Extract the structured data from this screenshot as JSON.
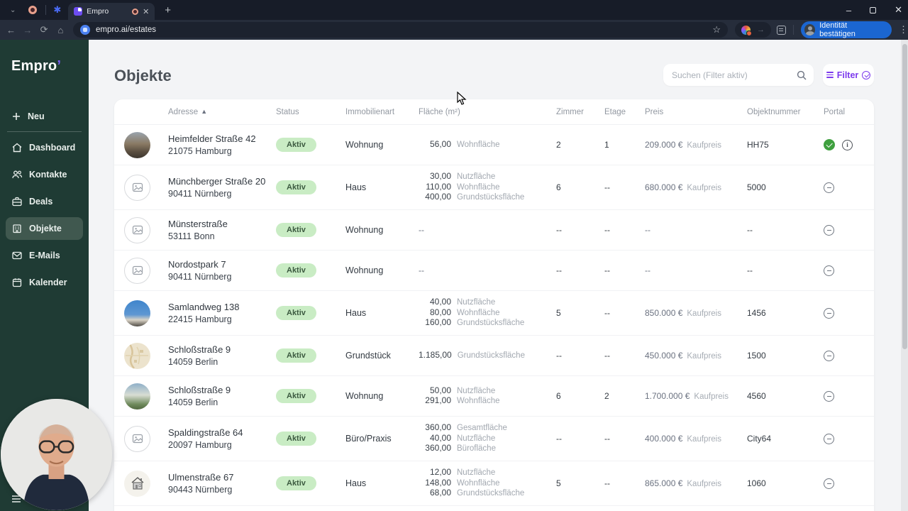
{
  "browser": {
    "tab_title": "Empro",
    "url": "empro.ai/estates",
    "identity_button": "Identität bestätigen",
    "window_buttons": {
      "minimize": "–",
      "close": "✕"
    }
  },
  "sidebar": {
    "logo": "Empro",
    "logo_tick": "’",
    "new_label": "Neu",
    "items": [
      {
        "label": "Dashboard",
        "icon": "home-icon",
        "active": false
      },
      {
        "label": "Kontakte",
        "icon": "contacts-icon",
        "active": false
      },
      {
        "label": "Deals",
        "icon": "briefcase-icon",
        "active": false
      },
      {
        "label": "Objekte",
        "icon": "building-icon",
        "active": true
      },
      {
        "label": "E-Mails",
        "icon": "mail-icon",
        "active": false
      },
      {
        "label": "Kalender",
        "icon": "calendar-icon",
        "active": false
      }
    ],
    "more_label": "M"
  },
  "header": {
    "title": "Objekte",
    "search_placeholder": "Suchen (Filter aktiv)",
    "filter_label": "Filter"
  },
  "colors": {
    "sidebar_green": "#1F3B34",
    "active_item": "#40584F",
    "accent_purple": "#7C3AED",
    "badge_bg": "#C9ECC4",
    "badge_text": "#3C5A40",
    "identity_blue": "#1B66D1",
    "portal_check_green": "#3FA03F"
  },
  "table": {
    "columns": [
      "Adresse",
      "Status",
      "Immobilienart",
      "Fläche (m²)",
      "Zimmer",
      "Etage",
      "Preis",
      "Objektnummer",
      "Portal"
    ],
    "sorted_column": "Adresse",
    "rows": [
      {
        "thumb": "photo-brown",
        "address1": "Heimfelder Straße 42",
        "address2": "21075 Hamburg",
        "status": "Aktiv",
        "type": "Wohnung",
        "areas": [
          [
            "56,00",
            "Wohnfläche"
          ]
        ],
        "rooms": "2",
        "floor": "1",
        "price": "209.000 €",
        "price_label": "Kaufpreis",
        "objnum": "HH75",
        "portal": [
          "check",
          "info"
        ]
      },
      {
        "thumb": "placeholder",
        "address1": "Münchberger Straße 20",
        "address2": "90411 Nürnberg",
        "status": "Aktiv",
        "type": "Haus",
        "areas": [
          [
            "30,00",
            "Nutzfläche"
          ],
          [
            "110,00",
            "Wohnfläche"
          ],
          [
            "400,00",
            "Grundstücksfläche"
          ]
        ],
        "rooms": "6",
        "floor": "--",
        "price": "680.000 €",
        "price_label": "Kaufpreis",
        "objnum": "5000",
        "portal": [
          "minus"
        ]
      },
      {
        "thumb": "placeholder",
        "address1": "Münsterstraße",
        "address2": "53111 Bonn",
        "status": "Aktiv",
        "type": "Wohnung",
        "areas": "--",
        "rooms": "--",
        "floor": "--",
        "price": "--",
        "price_label": "",
        "objnum": "--",
        "portal": [
          "minus"
        ]
      },
      {
        "thumb": "placeholder",
        "address1": "Nordostpark 7",
        "address2": "90411 Nürnberg",
        "status": "Aktiv",
        "type": "Wohnung",
        "areas": "--",
        "rooms": "--",
        "floor": "--",
        "price": "--",
        "price_label": "",
        "objnum": "--",
        "portal": [
          "minus"
        ]
      },
      {
        "thumb": "photo-sky",
        "address1": "Samlandweg 138",
        "address2": "22415 Hamburg",
        "status": "Aktiv",
        "type": "Haus",
        "areas": [
          [
            "40,00",
            "Nutzfläche"
          ],
          [
            "80,00",
            "Wohnfläche"
          ],
          [
            "160,00",
            "Grundstücksfläche"
          ]
        ],
        "rooms": "5",
        "floor": "--",
        "price": "850.000 €",
        "price_label": "Kaufpreis",
        "objnum": "1456",
        "portal": [
          "minus"
        ]
      },
      {
        "thumb": "photo-map",
        "address1": "Schloßstraße 9",
        "address2": "14059 Berlin",
        "status": "Aktiv",
        "type": "Grundstück",
        "areas": [
          [
            "1.185,00",
            "Grundstücksfläche"
          ]
        ],
        "rooms": "--",
        "floor": "--",
        "price": "450.000 €",
        "price_label": "Kaufpreis",
        "objnum": "1500",
        "portal": [
          "minus"
        ]
      },
      {
        "thumb": "photo-house",
        "address1": "Schloßstraße 9",
        "address2": "14059 Berlin",
        "status": "Aktiv",
        "type": "Wohnung",
        "areas": [
          [
            "50,00",
            "Nutzfläche"
          ],
          [
            "291,00",
            "Wohnfläche"
          ]
        ],
        "rooms": "6",
        "floor": "2",
        "price": "1.700.000 €",
        "price_label": "Kaufpreis",
        "objnum": "4560",
        "portal": [
          "minus"
        ]
      },
      {
        "thumb": "placeholder",
        "address1": "Spaldingstraße 64",
        "address2": "20097 Hamburg",
        "status": "Aktiv",
        "type": "Büro/Praxis",
        "areas": [
          [
            "360,00",
            "Gesamtfläche"
          ],
          [
            "40,00",
            "Nutzfläche"
          ],
          [
            "360,00",
            "Bürofläche"
          ]
        ],
        "rooms": "--",
        "floor": "--",
        "price": "400.000 €",
        "price_label": "Kaufpreis",
        "objnum": "City64",
        "portal": [
          "minus"
        ]
      },
      {
        "thumb": "sketch-house",
        "address1": "Ulmenstraße 67",
        "address2": "90443 Nürnberg",
        "status": "Aktiv",
        "type": "Haus",
        "areas": [
          [
            "12,00",
            "Nutzfläche"
          ],
          [
            "148,00",
            "Wohnfläche"
          ],
          [
            "68,00",
            "Grundstücksfläche"
          ]
        ],
        "rooms": "5",
        "floor": "--",
        "price": "865.000 €",
        "price_label": "Kaufpreis",
        "objnum": "1060",
        "portal": [
          "minus"
        ]
      }
    ]
  }
}
